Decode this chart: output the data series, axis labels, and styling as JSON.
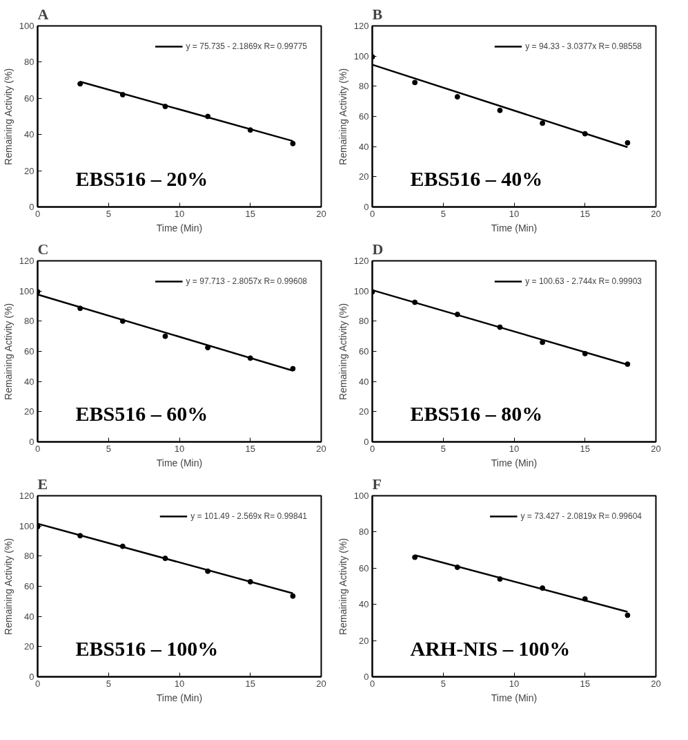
{
  "chart_data": [
    {
      "type": "scatter",
      "title": "A",
      "xlabel": "Time (Min)",
      "ylabel": "Remaining Activity (%)",
      "xlim": [
        0,
        20
      ],
      "xticks": [
        0,
        5,
        10,
        15,
        20
      ],
      "ylim": [
        0,
        100
      ],
      "yticks": [
        0,
        20,
        40,
        60,
        80,
        100
      ],
      "grid": false,
      "legend": "top right",
      "annotations": [
        "EBS516 – 20%"
      ],
      "series": [
        {
          "marker": "circle",
          "color": "#000000",
          "x": [
            3,
            6,
            9,
            12,
            15,
            18
          ],
          "values": [
            68,
            62,
            55.5,
            50,
            42.5,
            35
          ]
        },
        {
          "type": "line",
          "name": "y = 75.735 - 2.1869x R= 0.99775",
          "color": "#000000",
          "line_style": "solid",
          "x": [
            3,
            18
          ],
          "values": [
            69.2,
            36.4
          ]
        }
      ]
    },
    {
      "type": "scatter",
      "title": "B",
      "xlabel": "Time (Min)",
      "ylabel": "Remaining Activity (%)",
      "xlim": [
        0,
        20
      ],
      "xticks": [
        0,
        5,
        10,
        15,
        20
      ],
      "ylim": [
        0,
        120
      ],
      "yticks": [
        0,
        20,
        40,
        60,
        80,
        100,
        120
      ],
      "grid": false,
      "legend": "top right",
      "annotations": [
        "EBS516 – 40%"
      ],
      "series": [
        {
          "marker": "circle",
          "color": "#000000",
          "x": [
            0,
            3,
            6,
            9,
            12,
            15,
            18
          ],
          "values": [
            99.5,
            82.5,
            73,
            64,
            55.5,
            48.5,
            42.5
          ]
        },
        {
          "type": "line",
          "name": "y = 94.33 - 3.0377x R= 0.98558",
          "color": "#000000",
          "line_style": "solid",
          "x": [
            0,
            18
          ],
          "values": [
            94.3,
            39.6
          ]
        }
      ]
    },
    {
      "type": "scatter",
      "title": "C",
      "xlabel": "Time (Min)",
      "ylabel": "Remaining Activity (%)",
      "xlim": [
        0,
        20
      ],
      "xticks": [
        0,
        5,
        10,
        15,
        20
      ],
      "ylim": [
        0,
        120
      ],
      "yticks": [
        0,
        20,
        40,
        60,
        80,
        100,
        120
      ],
      "grid": false,
      "legend": "top right",
      "annotations": [
        "EBS516 – 60%"
      ],
      "series": [
        {
          "marker": "circle",
          "color": "#000000",
          "x": [
            0,
            3,
            6,
            9,
            12,
            15,
            18
          ],
          "values": [
            99.5,
            88.5,
            80,
            70,
            62.5,
            55.5,
            48.5
          ]
        },
        {
          "type": "line",
          "name": "y = 97.713 - 2.8057x R= 0.99608",
          "color": "#000000",
          "line_style": "solid",
          "x": [
            0,
            18
          ],
          "values": [
            97.7,
            47.2
          ]
        }
      ]
    },
    {
      "type": "scatter",
      "title": "D",
      "xlabel": "Time (Min)",
      "ylabel": "Remaining Activity (%)",
      "xlim": [
        0,
        20
      ],
      "xticks": [
        0,
        5,
        10,
        15,
        20
      ],
      "ylim": [
        0,
        120
      ],
      "yticks": [
        0,
        20,
        40,
        60,
        80,
        100,
        120
      ],
      "grid": false,
      "legend": "top right",
      "annotations": [
        "EBS516 – 80%"
      ],
      "series": [
        {
          "marker": "circle",
          "color": "#000000",
          "x": [
            0,
            3,
            6,
            9,
            12,
            15,
            18
          ],
          "values": [
            99.5,
            92.5,
            84.5,
            76,
            66,
            58.5,
            51.5
          ]
        },
        {
          "type": "line",
          "name": "y = 100.63 - 2.744x R= 0.99903",
          "color": "#000000",
          "line_style": "solid",
          "x": [
            0,
            18
          ],
          "values": [
            100.6,
            51.2
          ]
        }
      ]
    },
    {
      "type": "scatter",
      "title": "E",
      "xlabel": "Time (Min)",
      "ylabel": "Remaining Activity (%)",
      "xlim": [
        0,
        20
      ],
      "xticks": [
        0,
        5,
        10,
        15,
        20
      ],
      "ylim": [
        0,
        120
      ],
      "yticks": [
        0,
        20,
        40,
        60,
        80,
        100,
        120
      ],
      "grid": false,
      "legend": "top right",
      "annotations": [
        "EBS516 – 100%"
      ],
      "series": [
        {
          "marker": "circle",
          "color": "#000000",
          "x": [
            0,
            3,
            6,
            9,
            12,
            15,
            18
          ],
          "values": [
            99.5,
            93.5,
            86.5,
            78.5,
            70,
            63,
            53.5
          ]
        },
        {
          "type": "line",
          "name": "y = 101.49 - 2.569x R= 0.99841",
          "color": "#000000",
          "line_style": "solid",
          "x": [
            0,
            18
          ],
          "values": [
            101.5,
            55.3
          ]
        }
      ]
    },
    {
      "type": "scatter",
      "title": "F",
      "xlabel": "Time (Min)",
      "ylabel": "Remaining Activity (%)",
      "xlim": [
        0,
        20
      ],
      "xticks": [
        0,
        5,
        10,
        15,
        20
      ],
      "ylim": [
        0,
        100
      ],
      "yticks": [
        0,
        20,
        40,
        60,
        80,
        100
      ],
      "grid": false,
      "legend": "top right",
      "annotations": [
        "ARH-NIS – 100%"
      ],
      "series": [
        {
          "marker": "circle",
          "color": "#000000",
          "x": [
            3,
            6,
            9,
            12,
            15,
            18
          ],
          "values": [
            66,
            60.5,
            54,
            49,
            43,
            34
          ]
        },
        {
          "type": "line",
          "name": "y = 73.427 - 2.0819x R= 0.99604",
          "color": "#000000",
          "line_style": "solid",
          "x": [
            3,
            18
          ],
          "values": [
            67.2,
            35.9
          ]
        }
      ]
    }
  ]
}
